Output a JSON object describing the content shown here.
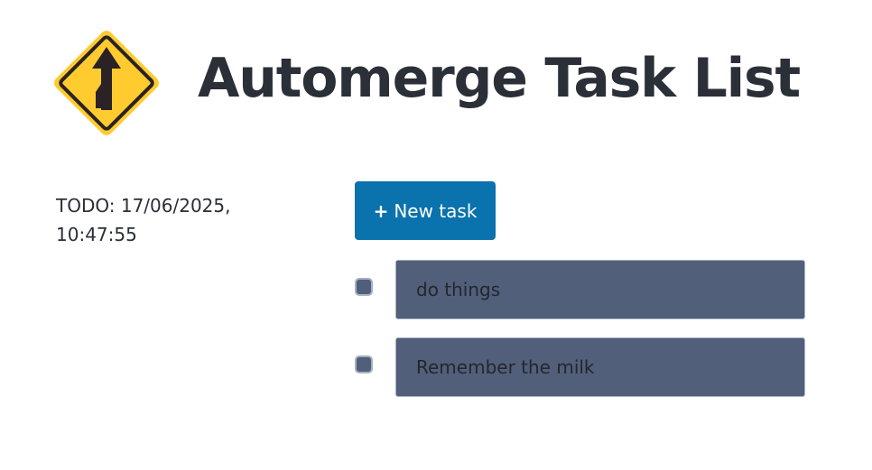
{
  "header": {
    "title": "Automerge Task List",
    "logo_icon": "merge-road-sign-icon",
    "logo_colors": {
      "fill": "#ffcb2f",
      "ink": "#2a2224"
    }
  },
  "sidebar": {
    "doc_label": "TODO: 17/06/2025, 10:47:55"
  },
  "toolbar": {
    "new_task_plus": "+",
    "new_task_label": "New task",
    "accent": "#0a72ac"
  },
  "tasks": [
    {
      "title": "do things",
      "done": false
    },
    {
      "title": "Remember the milk",
      "done": false
    }
  ]
}
